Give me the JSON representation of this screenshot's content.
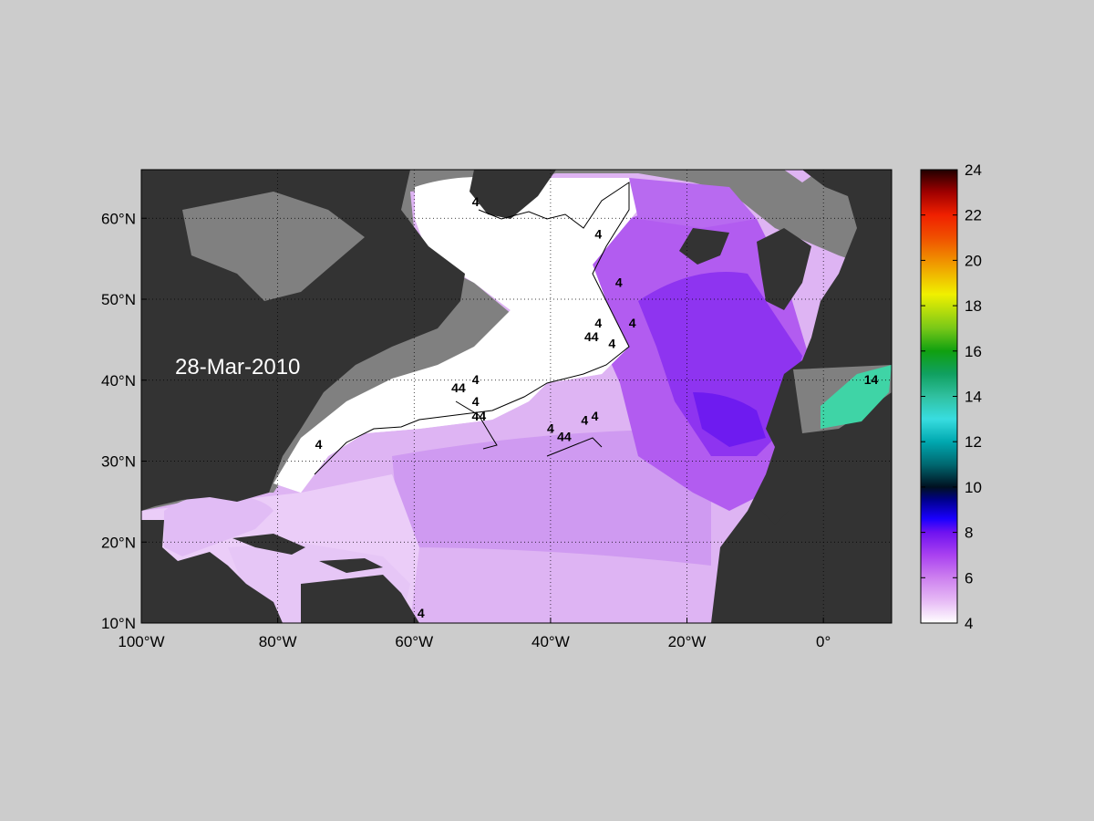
{
  "date_label": "28-Mar-2010",
  "colors": {
    "figure_background": "#cccccc",
    "land": "#333333",
    "shelf": "#808080",
    "no_data_ocean": "#ffffff",
    "contour": "#000000",
    "date_text": "#ffffff"
  },
  "map": {
    "lon_range": [
      -100,
      10
    ],
    "lat_range": [
      10,
      66
    ],
    "grid": "dotted",
    "x_ticks": [
      {
        "lon": -100,
        "label": "100°W"
      },
      {
        "lon": -80,
        "label": "80°W"
      },
      {
        "lon": -60,
        "label": "60°W"
      },
      {
        "lon": -40,
        "label": "40°W"
      },
      {
        "lon": -20,
        "label": "20°W"
      },
      {
        "lon": 0,
        "label": "0°"
      }
    ],
    "y_ticks": [
      {
        "lat": 10,
        "label": "10°N"
      },
      {
        "lat": 20,
        "label": "20°N"
      },
      {
        "lat": 30,
        "label": "30°N"
      },
      {
        "lat": 40,
        "label": "40°N"
      },
      {
        "lat": 50,
        "label": "50°N"
      },
      {
        "lat": 60,
        "label": "60°N"
      }
    ],
    "contour_value": 4,
    "contour_labels": [
      {
        "lon": -51,
        "lat": 61.5,
        "text": "4"
      },
      {
        "lon": -33,
        "lat": 57.5,
        "text": "4"
      },
      {
        "lon": -30,
        "lat": 51.5,
        "text": "4"
      },
      {
        "lon": -33,
        "lat": 46.5,
        "text": "4"
      },
      {
        "lon": -34,
        "lat": 44.8,
        "text": "44"
      },
      {
        "lon": -31,
        "lat": 44.0,
        "text": "4"
      },
      {
        "lon": -28,
        "lat": 46.5,
        "text": "4"
      },
      {
        "lon": -51,
        "lat": 39.5,
        "text": "4"
      },
      {
        "lon": -53.5,
        "lat": 38.5,
        "text": "44"
      },
      {
        "lon": -51,
        "lat": 36.8,
        "text": "4"
      },
      {
        "lon": -50.5,
        "lat": 35.0,
        "text": "44"
      },
      {
        "lon": -40,
        "lat": 33.5,
        "text": "4"
      },
      {
        "lon": -38,
        "lat": 32.5,
        "text": "44"
      },
      {
        "lon": -35,
        "lat": 34.5,
        "text": "4"
      },
      {
        "lon": -33.5,
        "lat": 35.0,
        "text": "4"
      },
      {
        "lon": -74,
        "lat": 31.5,
        "text": "4"
      },
      {
        "lon": -59,
        "lat": 10.7,
        "text": "4"
      },
      {
        "lon": 7,
        "lat": 39.5,
        "text": "14"
      }
    ]
  },
  "colorbar": {
    "min": 4,
    "max": 24,
    "ticks": [
      4,
      6,
      8,
      10,
      12,
      14,
      16,
      18,
      20,
      22,
      24
    ],
    "stops": [
      {
        "v": 4,
        "c": "#ffffff"
      },
      {
        "v": 5,
        "c": "#e6b9f5"
      },
      {
        "v": 6,
        "c": "#cd80ef"
      },
      {
        "v": 7,
        "c": "#a941f0"
      },
      {
        "v": 8,
        "c": "#6f12f0"
      },
      {
        "v": 8.6,
        "c": "#1a00ff"
      },
      {
        "v": 9.4,
        "c": "#000090"
      },
      {
        "v": 10,
        "c": "#001020"
      },
      {
        "v": 11,
        "c": "#006870"
      },
      {
        "v": 12,
        "c": "#00a8b0"
      },
      {
        "v": 13,
        "c": "#38dde0"
      },
      {
        "v": 14,
        "c": "#30c0a0"
      },
      {
        "v": 15,
        "c": "#10a060"
      },
      {
        "v": 16,
        "c": "#10a010"
      },
      {
        "v": 17,
        "c": "#78c818"
      },
      {
        "v": 18.5,
        "c": "#f0f000"
      },
      {
        "v": 20,
        "c": "#f09000"
      },
      {
        "v": 21,
        "c": "#f05000"
      },
      {
        "v": 22,
        "c": "#f02000"
      },
      {
        "v": 23,
        "c": "#a00000"
      },
      {
        "v": 24,
        "c": "#200000"
      }
    ]
  }
}
